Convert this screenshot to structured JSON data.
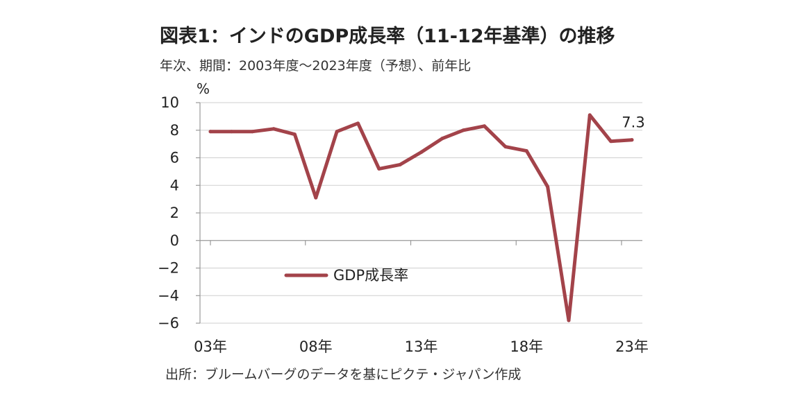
{
  "title": "図表1：インドのGDP成長率（11-12年基準）の推移",
  "subtitle": "年次、期間：2003年度〜2023年度（予想）、前年比",
  "source": "出所：ブルームバーグのデータを基にピクテ・ジャパン作成",
  "chart_data": {
    "type": "line",
    "ylabel": "%",
    "ylim": [
      -6,
      10
    ],
    "yticks": [
      10,
      8,
      6,
      4,
      2,
      0,
      -2,
      -4,
      -6
    ],
    "ytick_labels": [
      "10",
      "8",
      "6",
      "4",
      "2",
      "0",
      "−2",
      "−4",
      "−6"
    ],
    "x": [
      2003,
      2004,
      2005,
      2006,
      2007,
      2008,
      2009,
      2010,
      2011,
      2012,
      2013,
      2014,
      2015,
      2016,
      2017,
      2018,
      2019,
      2020,
      2021,
      2022,
      2023
    ],
    "xticks": [
      2003,
      2008,
      2013,
      2018,
      2023
    ],
    "xtick_labels": [
      "03年",
      "08年",
      "13年",
      "18年",
      "23年"
    ],
    "grid": true,
    "legend_position": "bottom-left",
    "series": [
      {
        "name": "GDP成長率",
        "color": "#a3434a",
        "values": [
          7.9,
          7.9,
          7.9,
          8.1,
          7.7,
          3.1,
          7.9,
          8.5,
          5.2,
          5.5,
          6.4,
          7.4,
          8.0,
          8.3,
          6.8,
          6.5,
          3.9,
          -5.8,
          9.1,
          7.2,
          7.3
        ]
      }
    ],
    "annotations": [
      {
        "x": 2023,
        "y": 7.3,
        "text": "7.3"
      }
    ]
  }
}
